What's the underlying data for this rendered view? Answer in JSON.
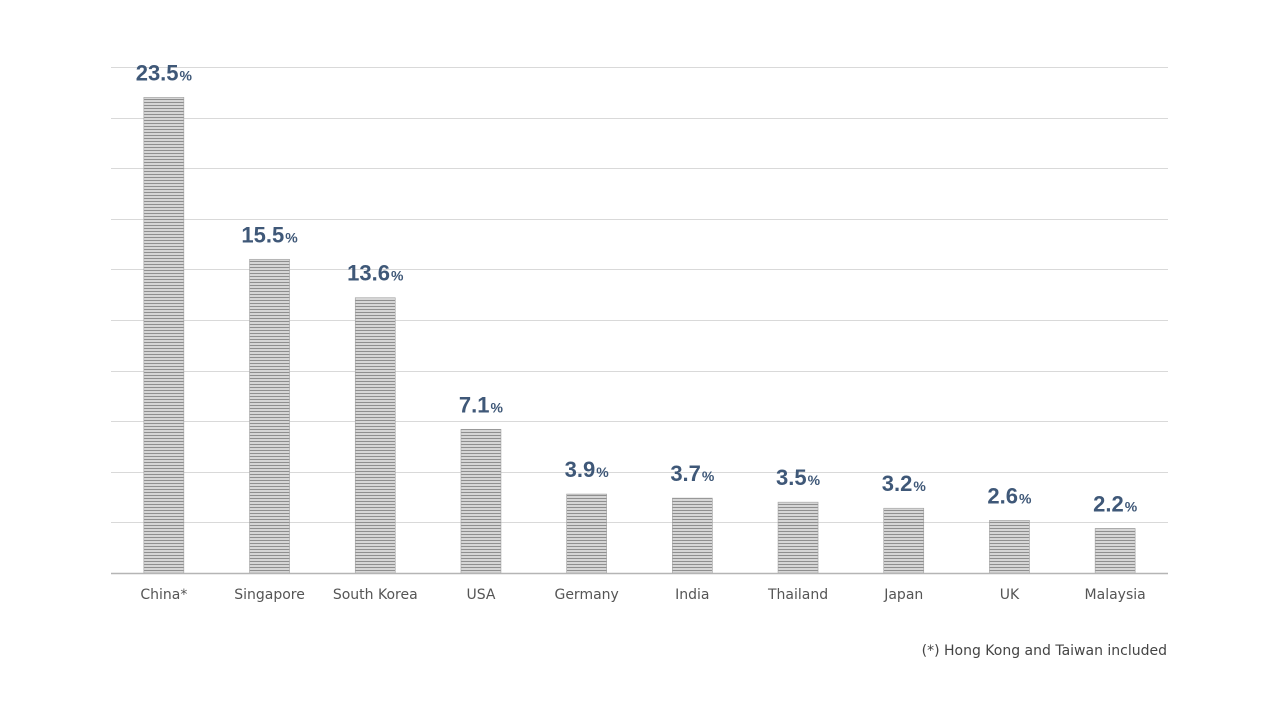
{
  "chart_data": {
    "type": "bar",
    "categories": [
      "China*",
      "Singapore",
      "South Korea",
      "USA",
      "Germany",
      "India",
      "Thailand",
      "Japan",
      "UK",
      "Malaysia"
    ],
    "values": [
      23.5,
      15.5,
      13.6,
      7.1,
      3.9,
      3.7,
      3.5,
      3.2,
      2.6,
      2.2
    ],
    "value_labels": [
      "23.5",
      "15.5",
      "13.6",
      "7.1",
      "3.9",
      "3.7",
      "3.5",
      "3.2",
      "2.6",
      "2.2"
    ],
    "value_suffix": "%",
    "ylim": [
      0,
      25
    ],
    "grid": true,
    "colors": {
      "bar": "#c8c8c8",
      "bar_stripe": "#8c8c8c",
      "label": "#3f5878",
      "grid": "#d9d9d9",
      "axis": "#b5b5b5"
    }
  },
  "footnote": "(*) Hong Kong and Taiwan included"
}
